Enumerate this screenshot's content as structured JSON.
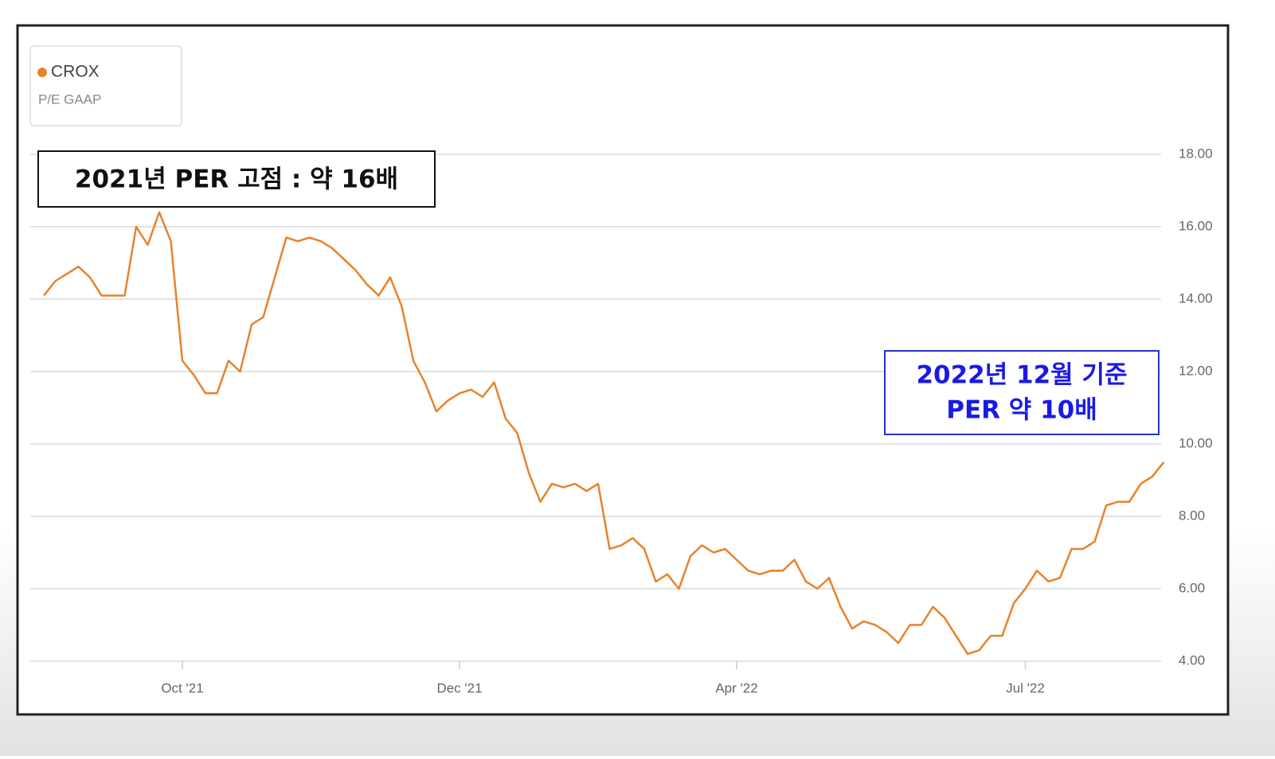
{
  "chart_data": {
    "type": "line",
    "title": "CROX",
    "subtitle": "P/E GAAP",
    "annotations": [
      "2021년 PER 고점 : 약 16배",
      "2022년 12월 기준",
      "PER 약 10배"
    ],
    "categories": [
      null,
      null,
      null,
      null,
      null,
      null,
      null,
      null,
      null,
      null,
      null,
      null,
      "Oct '21",
      null,
      null,
      null,
      null,
      null,
      null,
      null,
      null,
      null,
      null,
      null,
      null,
      null,
      null,
      null,
      null,
      null,
      null,
      null,
      null,
      null,
      null,
      null,
      "Dec '21",
      null,
      null,
      null,
      null,
      null,
      null,
      null,
      null,
      null,
      null,
      null,
      null,
      null,
      null,
      null,
      null,
      null,
      null,
      null,
      null,
      null,
      null,
      null,
      "Apr '22",
      null,
      null,
      null,
      null,
      null,
      null,
      null,
      null,
      null,
      null,
      null,
      null,
      null,
      null,
      null,
      null,
      null,
      null,
      null,
      null,
      null,
      null,
      null,
      null,
      "Jul '22",
      null,
      null,
      null,
      null,
      null,
      null,
      null,
      null,
      null,
      null,
      null,
      null
    ],
    "series": [
      {
        "name": "CROX",
        "color": "#e8822a",
        "values": [
          14.1,
          14.5,
          14.7,
          14.9,
          14.6,
          14.1,
          14.1,
          14.1,
          16.0,
          15.5,
          16.4,
          15.6,
          12.3,
          11.9,
          11.4,
          11.4,
          12.3,
          12.0,
          13.3,
          13.5,
          14.6,
          15.7,
          15.6,
          15.7,
          15.6,
          15.4,
          15.1,
          14.8,
          14.4,
          14.1,
          14.6,
          13.8,
          12.3,
          11.7,
          10.9,
          11.2,
          11.4,
          11.5,
          11.3,
          11.7,
          10.7,
          10.3,
          9.2,
          8.4,
          8.9,
          8.8,
          8.9,
          8.7,
          8.9,
          7.1,
          7.2,
          7.4,
          7.1,
          6.2,
          6.4,
          6.0,
          6.9,
          7.2,
          7.0,
          7.1,
          6.8,
          6.5,
          6.4,
          6.5,
          6.5,
          6.8,
          6.2,
          6.0,
          6.3,
          5.5,
          4.9,
          5.1,
          5.0,
          4.8,
          4.5,
          5.0,
          5.0,
          5.5,
          5.2,
          4.7,
          4.2,
          4.3,
          4.7,
          4.7,
          5.6,
          6.0,
          6.5,
          6.2,
          6.3,
          7.1,
          7.1,
          7.3,
          8.3,
          8.4,
          8.4,
          8.9,
          9.1,
          9.5
        ]
      }
    ],
    "ylim": [
      4,
      18
    ],
    "yticks": [
      {
        "value": 4,
        "label": "4.00"
      },
      {
        "value": 6,
        "label": "6.00"
      },
      {
        "value": 8,
        "label": "8.00"
      },
      {
        "value": 10,
        "label": "10.00"
      },
      {
        "value": 12,
        "label": "12.00"
      },
      {
        "value": 14,
        "label": "14.00"
      },
      {
        "value": 16,
        "label": "16.00"
      },
      {
        "value": 18,
        "label": "18.00"
      }
    ],
    "grid": true
  }
}
